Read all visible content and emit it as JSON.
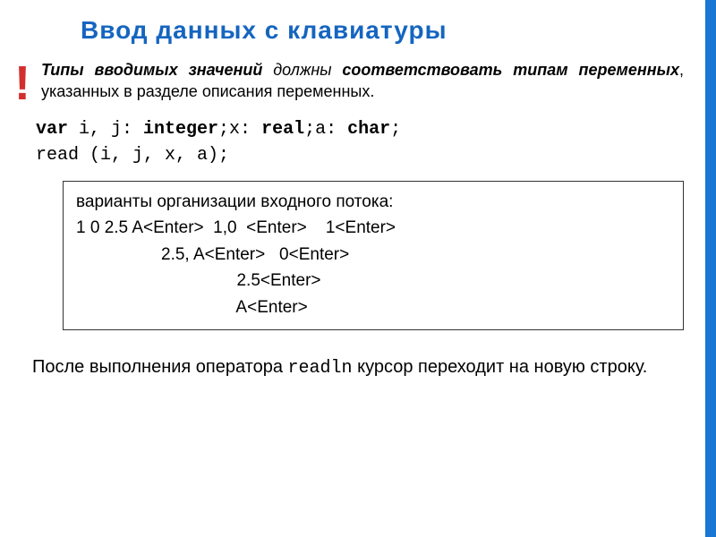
{
  "title": "Ввод данных с клавиатуры",
  "exclaim": "!",
  "intro": {
    "part1": "Типы вводимых значений",
    "part2": " должны ",
    "part3": "соответствовать типам переменных",
    "part4": ", указанных в разделе описания переменных."
  },
  "code": {
    "prefix1": "var",
    "vars1": " i, j: ",
    "type1": "integer",
    "sep1": ";x: ",
    "type2": "real",
    "sep2": ";a: ",
    "type3": "char",
    "end1": ";",
    "line2": "read (i, j, x, a);"
  },
  "box": {
    "header": "варианты организации входного потока:",
    "l1": "1 0 2.5 A<Enter>  1,0  <Enter>    1<Enter>",
    "l2": "                  2.5, A<Enter>   0<Enter>",
    "l3": "                                  2.5<Enter>",
    "l4": "                                  A<Enter>"
  },
  "outro": {
    "p1": "После выполнения оператора ",
    "mono": "readln",
    "p2": " курсор переходит на новую строку."
  },
  "colors": {
    "title": "#1565c0",
    "exclaim": "#d32f2f",
    "stripe": "#1976d2",
    "border": "#333333",
    "text": "#000000",
    "background": "#ffffff"
  },
  "typography": {
    "title_fontsize": 28,
    "body_fontsize": 18,
    "code_fontsize": 20,
    "box_fontsize": 19,
    "code_font": "Courier New",
    "body_font": "Verdana"
  }
}
